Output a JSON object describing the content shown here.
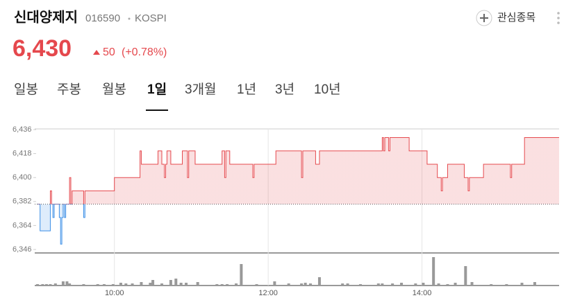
{
  "header": {
    "name": "신대양제지",
    "code": "016590",
    "market": "KOSPI",
    "watch": "관심종목"
  },
  "quote": {
    "price": "6,430",
    "change": "50",
    "change_pct": "(+0.78%)"
  },
  "tabs": {
    "items": [
      "일봉",
      "주봉",
      "월봉",
      "1일",
      "3개월",
      "1년",
      "3년",
      "10년"
    ],
    "active": 3
  },
  "chart_data": {
    "type": "line",
    "x": [
      "09:00",
      "09:02",
      "09:10",
      "09:11",
      "09:12",
      "09:13",
      "09:17",
      "09:18",
      "09:19",
      "09:20",
      "09:21",
      "09:22",
      "09:25",
      "09:26",
      "09:27",
      "09:36",
      "09:37",
      "10:00",
      "10:20",
      "10:21",
      "10:34",
      "10:37",
      "10:39",
      "10:40",
      "10:41",
      "10:44",
      "10:53",
      "10:57",
      "10:58",
      "11:03",
      "11:24",
      "11:26",
      "11:27",
      "11:30",
      "11:48",
      "11:49",
      "12:06",
      "12:26",
      "12:27",
      "12:37",
      "12:40",
      "13:29",
      "13:30",
      "13:31",
      "13:34",
      "13:35",
      "13:50",
      "14:04",
      "14:12",
      "14:15",
      "14:16",
      "14:20",
      "14:33",
      "14:36",
      "14:37",
      "14:48",
      "15:09",
      "15:10",
      "15:20"
    ],
    "values": [
      6380,
      6360,
      6390,
      6380,
      6370,
      6380,
      6370,
      6350,
      6370,
      6380,
      6370,
      6380,
      6400,
      6380,
      6390,
      6370,
      6390,
      6400,
      6420,
      6410,
      6420,
      6410,
      6400,
      6410,
      6420,
      6410,
      6420,
      6400,
      6420,
      6410,
      6420,
      6400,
      6420,
      6410,
      6400,
      6410,
      6420,
      6400,
      6420,
      6410,
      6420,
      6430,
      6420,
      6430,
      6420,
      6430,
      6420,
      6410,
      6400,
      6390,
      6400,
      6410,
      6400,
      6390,
      6400,
      6410,
      6400,
      6410,
      6430
    ],
    "baseline": 6380,
    "up_color": "#e5484d",
    "down_color": "#3a8ee6",
    "ylim": [
      6346,
      6436
    ],
    "yticks": [
      {
        "value": 6436,
        "label": "6,436"
      },
      {
        "value": 6418,
        "label": "6,418"
      },
      {
        "value": 6400,
        "label": "6,400"
      },
      {
        "value": 6382,
        "label": "6,382"
      },
      {
        "value": 6364,
        "label": "6,364"
      },
      {
        "value": 6346,
        "label": "6,346"
      }
    ],
    "xlim": [
      "09:00",
      "15:47"
    ],
    "xticks": [
      "10:00",
      "12:00",
      "14:00"
    ],
    "volume": {
      "color": "#999999",
      "vlim": [
        0,
        50
      ],
      "x": [
        "09:00",
        "09:04",
        "09:07",
        "09:10",
        "09:14",
        "09:20",
        "09:23",
        "09:25",
        "09:36",
        "09:47",
        "09:52",
        "09:59",
        "10:05",
        "10:09",
        "10:14",
        "10:21",
        "10:28",
        "10:30",
        "10:37",
        "10:44",
        "10:48",
        "10:52",
        "10:56",
        "11:05",
        "11:20",
        "11:24",
        "11:28",
        "11:35",
        "11:39",
        "11:51",
        "12:05",
        "12:16",
        "12:26",
        "12:29",
        "12:33",
        "12:40",
        "12:58",
        "13:02",
        "13:12",
        "13:26",
        "13:29",
        "13:37",
        "13:44",
        "13:55",
        "14:01",
        "14:09",
        "14:13",
        "14:20",
        "14:26",
        "14:34",
        "14:39",
        "14:54",
        "15:06",
        "15:18",
        "15:28"
      ],
      "values": [
        2,
        2,
        2,
        2,
        3,
        6,
        6,
        3,
        2,
        2,
        2,
        2,
        4,
        3,
        3,
        5,
        4,
        8,
        3,
        8,
        10,
        4,
        4,
        5,
        2,
        2,
        2,
        3,
        31,
        2,
        6,
        3,
        3,
        4,
        3,
        12,
        3,
        3,
        2,
        3,
        3,
        3,
        4,
        3,
        4,
        41,
        3,
        2,
        4,
        28,
        5,
        2,
        2,
        4,
        5
      ]
    }
  }
}
